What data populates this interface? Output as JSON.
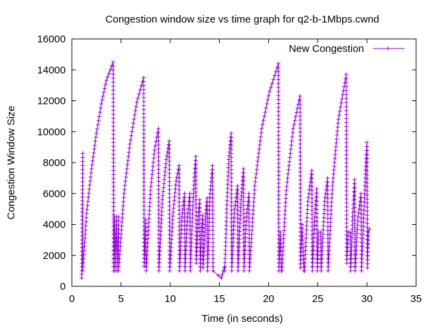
{
  "chart_data": {
    "type": "line",
    "title": "Congestion window size vs time graph for q2-b-1Mbps.cwnd",
    "xlabel": "Time (in seconds)",
    "ylabel": "Congestion Window Size",
    "xlim": [
      0,
      35
    ],
    "ylim": [
      0,
      16000
    ],
    "x_ticks": [
      {
        "value": 0,
        "label": "0"
      },
      {
        "value": 5,
        "label": "5"
      },
      {
        "value": 10,
        "label": "10"
      },
      {
        "value": 15,
        "label": "15"
      },
      {
        "value": 20,
        "label": "20"
      },
      {
        "value": 25,
        "label": "25"
      },
      {
        "value": 30,
        "label": "30"
      },
      {
        "value": 35,
        "label": "35"
      }
    ],
    "y_ticks": [
      {
        "value": 0,
        "label": "0"
      },
      {
        "value": 2000,
        "label": "2000"
      },
      {
        "value": 4000,
        "label": "4000"
      },
      {
        "value": 6000,
        "label": "6000"
      },
      {
        "value": 8000,
        "label": "8000"
      },
      {
        "value": 10000,
        "label": "10000"
      },
      {
        "value": 12000,
        "label": "12000"
      },
      {
        "value": 14000,
        "label": "14000"
      },
      {
        "value": 16000,
        "label": "16000"
      }
    ],
    "grid": false,
    "legend_position": "top-right",
    "series": [
      {
        "name": "New Congestion",
        "color": "#9400d3",
        "marker": "plus",
        "points": [
          [
            1.0,
            536
          ],
          [
            1.02,
            1500
          ],
          [
            1.04,
            3000
          ],
          [
            1.06,
            4800
          ],
          [
            1.08,
            6500
          ],
          [
            1.1,
            8600
          ],
          [
            1.1,
            1000
          ],
          [
            1.5,
            4700
          ],
          [
            2.0,
            7600
          ],
          [
            2.5,
            9900
          ],
          [
            3.0,
            11800
          ],
          [
            3.5,
            13300
          ],
          [
            4.2,
            14500
          ],
          [
            4.25,
            1000
          ],
          [
            4.35,
            4500
          ],
          [
            4.4,
            1000
          ],
          [
            4.55,
            4500
          ],
          [
            4.6,
            1000
          ],
          [
            4.75,
            4500
          ],
          [
            4.75,
            1000
          ],
          [
            5.3,
            6000
          ],
          [
            5.9,
            9200
          ],
          [
            6.6,
            11900
          ],
          [
            7.3,
            13500
          ],
          [
            7.35,
            1300
          ],
          [
            7.5,
            4300
          ],
          [
            7.55,
            1000
          ],
          [
            7.55,
            1000
          ],
          [
            8.0,
            6200
          ],
          [
            8.4,
            8800
          ],
          [
            8.8,
            10200
          ],
          [
            8.85,
            1000
          ],
          [
            9.2,
            5600
          ],
          [
            9.6,
            8200
          ],
          [
            9.9,
            9400
          ],
          [
            9.95,
            1000
          ],
          [
            10.3,
            4800
          ],
          [
            10.6,
            6800
          ],
          [
            10.9,
            7800
          ],
          [
            10.95,
            1000
          ],
          [
            11.2,
            4500
          ],
          [
            11.45,
            6000
          ],
          [
            11.5,
            1000
          ],
          [
            11.75,
            4500
          ],
          [
            12.0,
            6000
          ],
          [
            12.05,
            1000
          ],
          [
            12.35,
            6000
          ],
          [
            12.6,
            8400
          ],
          [
            12.65,
            1500
          ],
          [
            12.85,
            4500
          ],
          [
            13.0,
            5600
          ],
          [
            13.05,
            1000
          ],
          [
            13.2,
            3800
          ],
          [
            13.3,
            4600
          ],
          [
            13.35,
            1200
          ],
          [
            13.6,
            4500
          ],
          [
            13.75,
            5700
          ],
          [
            13.8,
            1000
          ],
          [
            14.05,
            6000
          ],
          [
            14.3,
            7800
          ],
          [
            14.35,
            1000
          ],
          [
            14.9,
            700
          ],
          [
            15.2,
            536
          ],
          [
            15.5,
            1200
          ],
          [
            15.55,
            1000
          ],
          [
            15.75,
            5000
          ],
          [
            15.95,
            8200
          ],
          [
            16.2,
            9900
          ],
          [
            16.25,
            1000
          ],
          [
            16.55,
            5000
          ],
          [
            16.85,
            6500
          ],
          [
            16.9,
            1000
          ],
          [
            17.2,
            5600
          ],
          [
            17.45,
            7600
          ],
          [
            17.5,
            1000
          ],
          [
            17.75,
            4500
          ],
          [
            18.0,
            6000
          ],
          [
            18.05,
            1000
          ],
          [
            18.6,
            6500
          ],
          [
            19.3,
            10200
          ],
          [
            20.1,
            12600
          ],
          [
            21.0,
            14400
          ],
          [
            21.05,
            1000
          ],
          [
            21.2,
            3500
          ],
          [
            21.3,
            1000
          ],
          [
            21.35,
            1000
          ],
          [
            21.8,
            6200
          ],
          [
            22.5,
            10200
          ],
          [
            23.2,
            12300
          ],
          [
            23.25,
            1200
          ],
          [
            23.4,
            4000
          ],
          [
            23.6,
            1000
          ],
          [
            23.65,
            1000
          ],
          [
            24.0,
            5500
          ],
          [
            24.4,
            7500
          ],
          [
            24.45,
            1000
          ],
          [
            24.7,
            4500
          ],
          [
            24.9,
            6300
          ],
          [
            24.95,
            1000
          ],
          [
            25.1,
            3500
          ],
          [
            25.3,
            3500
          ],
          [
            25.35,
            1000
          ],
          [
            25.7,
            5500
          ],
          [
            26.0,
            7000
          ],
          [
            26.05,
            1000
          ],
          [
            26.5,
            6500
          ],
          [
            27.1,
            10800
          ],
          [
            27.9,
            13700
          ],
          [
            27.95,
            1500
          ],
          [
            28.1,
            3500
          ],
          [
            28.3,
            3500
          ],
          [
            28.35,
            1000
          ],
          [
            28.55,
            4500
          ],
          [
            28.75,
            6900
          ],
          [
            28.8,
            1000
          ],
          [
            29.1,
            4500
          ],
          [
            29.4,
            6000
          ],
          [
            29.45,
            1000
          ],
          [
            29.8,
            6500
          ],
          [
            30.0,
            9300
          ],
          [
            30.05,
            1200
          ],
          [
            30.15,
            3500
          ],
          [
            30.25,
            3700
          ]
        ]
      }
    ]
  }
}
